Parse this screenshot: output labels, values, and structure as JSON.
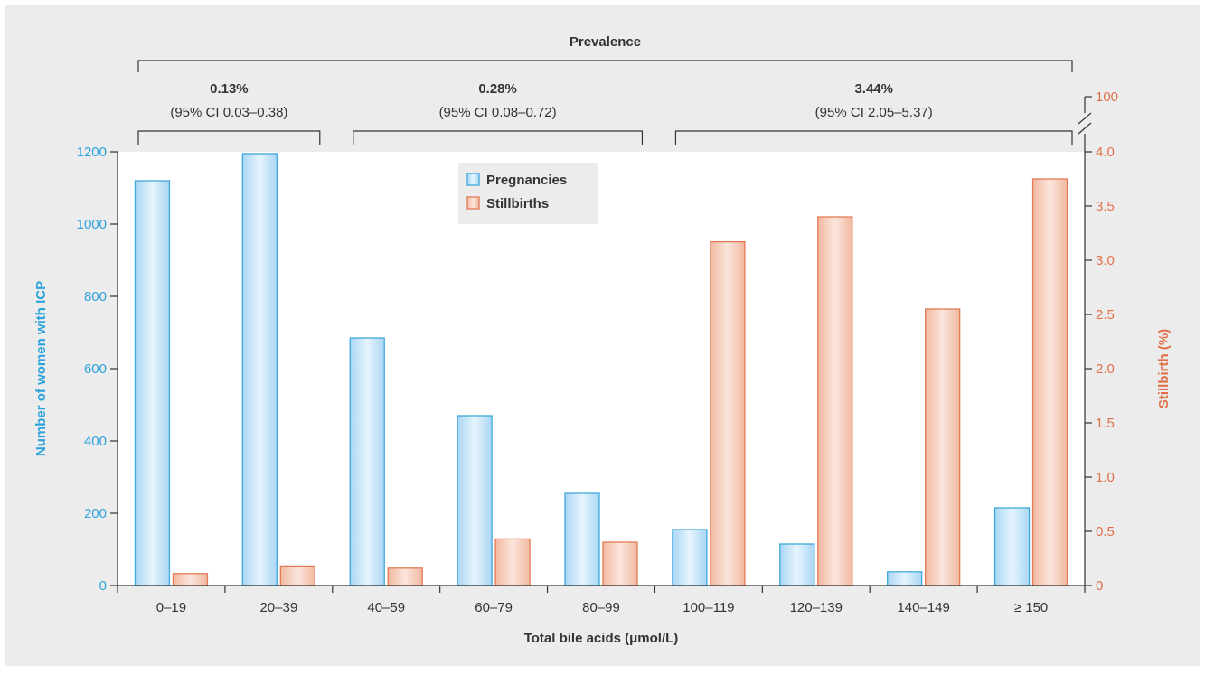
{
  "chart_data": {
    "type": "bar",
    "xlabel": "Total bile acids (μmol/L)",
    "ylabel_left": "Number of women with ICP",
    "ylabel_right": "Stillbirth (%)",
    "categories": [
      "0–19",
      "20–39",
      "40–59",
      "60–79",
      "80–99",
      "100–119",
      "120–139",
      "140–149",
      "≥ 150"
    ],
    "ylim_left": [
      0,
      1200
    ],
    "yticks_left": [
      "0",
      "200",
      "400",
      "600",
      "800",
      "1000",
      "1200"
    ],
    "ylim_right": [
      0,
      4.0
    ],
    "yticks_right": [
      "0",
      "0.5",
      "1.0",
      "1.5",
      "2.0",
      "2.5",
      "3.0",
      "3.5",
      "4.0"
    ],
    "right_axis_break_label": "100",
    "series": [
      {
        "name": "Pregnancies",
        "axis": "left",
        "color": "#3fa9dc",
        "values": [
          1120,
          1195,
          685,
          470,
          255,
          155,
          115,
          38,
          215
        ]
      },
      {
        "name": "Stillbirths",
        "axis": "right",
        "color": "#e37a55",
        "values": [
          0.11,
          0.18,
          0.16,
          0.43,
          0.4,
          3.17,
          3.4,
          2.55,
          3.75
        ]
      }
    ],
    "legend": {
      "placement": "top-center"
    },
    "left_axis_color": "#2ea3dc",
    "right_axis_color": "#e0714a",
    "prevalence": {
      "title": "Prevalence",
      "groups": [
        {
          "value": "0.13%",
          "ci": "(95% CI 0.03–0.38)",
          "from": 0,
          "to": 1
        },
        {
          "value": "0.28%",
          "ci": "(95% CI 0.08–0.72)",
          "from": 2,
          "to": 4
        },
        {
          "value": "3.44%",
          "ci": "(95% CI 2.05–5.37)",
          "from": 5,
          "to": 8
        }
      ]
    }
  }
}
